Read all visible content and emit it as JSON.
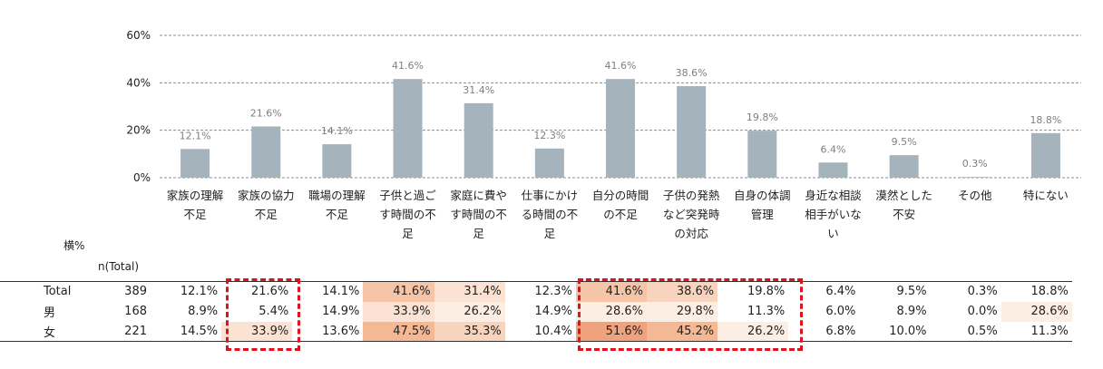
{
  "chart_data": {
    "type": "bar",
    "categories": [
      "家族の理解\n不足",
      "家族の協力\n不足",
      "職場の理解\n不足",
      "子供と過ご\nす時間の不\n足",
      "家庭に費や\nす時間の不\n足",
      "仕事にかけ\nる時間の不\n足",
      "自分の時間\nの不足",
      "子供の発熱\nなど突発時\nの対応",
      "自身の体調\n管理",
      "身近な相談\n相手がいな\nい",
      "漠然とした\n不安",
      "その他",
      "特にない"
    ],
    "values": [
      12.1,
      21.6,
      14.1,
      41.6,
      31.4,
      12.3,
      41.6,
      38.6,
      19.8,
      6.4,
      9.5,
      0.3,
      18.8
    ],
    "value_labels": [
      "12.1%",
      "21.6%",
      "14.1%",
      "41.6%",
      "31.4%",
      "12.3%",
      "41.6%",
      "38.6%",
      "19.8%",
      "6.4%",
      "9.5%",
      "0.3%",
      "18.8%"
    ],
    "ylim": [
      0,
      60
    ],
    "yticks": [
      "0%",
      "20%",
      "40%",
      "60%"
    ],
    "grid": true,
    "bar_color": "#a5b3bc"
  },
  "table": {
    "row_header_label": "横%",
    "n_label": "n(Total)",
    "rows": [
      {
        "label": "Total",
        "n": "389",
        "values": [
          "12.1%",
          "21.6%",
          "14.1%",
          "41.6%",
          "31.4%",
          "12.3%",
          "41.6%",
          "38.6%",
          "19.8%",
          "6.4%",
          "9.5%",
          "0.3%",
          "18.8%"
        ]
      },
      {
        "label": "男",
        "n": "168",
        "values": [
          "8.9%",
          "5.4%",
          "14.9%",
          "33.9%",
          "26.2%",
          "14.9%",
          "28.6%",
          "29.8%",
          "11.3%",
          "6.0%",
          "8.9%",
          "0.0%",
          "28.6%"
        ]
      },
      {
        "label": "女",
        "n": "221",
        "values": [
          "14.5%",
          "33.9%",
          "13.6%",
          "47.5%",
          "35.3%",
          "10.4%",
          "51.6%",
          "45.2%",
          "26.2%",
          "6.8%",
          "10.0%",
          "0.5%",
          "11.3%"
        ]
      }
    ]
  }
}
